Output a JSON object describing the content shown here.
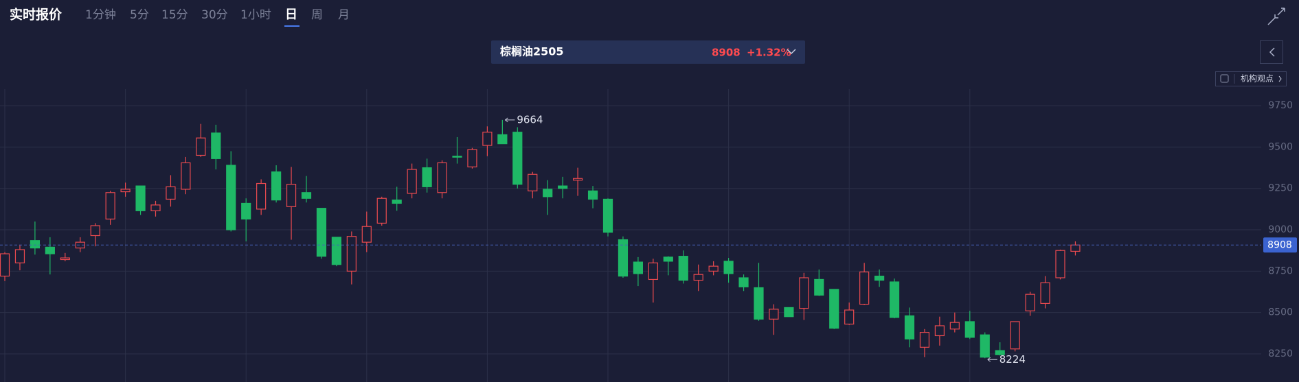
{
  "header": {
    "title": "实时报价",
    "tabs": [
      "1分钟",
      "5分",
      "15分",
      "30分",
      "1小时",
      "日",
      "周",
      "月"
    ],
    "active_tab": 5,
    "quote": {
      "symbol": "棕榈油2505",
      "price": 8908,
      "change": "+1.32%"
    },
    "button": "机构观点"
  },
  "chart_data": {
    "type": "candlestick",
    "open": [
      8720,
      8800,
      8935,
      8895,
      8820,
      8890,
      8965,
      9065,
      9230,
      9265,
      9115,
      9185,
      9245,
      9450,
      9585,
      9390,
      9160,
      9125,
      9350,
      9140,
      9225,
      9130,
      8955,
      8750,
      8925,
      9040,
      9180,
      9220,
      9375,
      9225,
      9445,
      9380,
      9510,
      9575,
      9590,
      9235,
      9245,
      9265,
      9300,
      9235,
      9185,
      8940,
      8805,
      8700,
      8835,
      8840,
      8695,
      8750,
      8810,
      8710,
      8650,
      8460,
      8530,
      8525,
      8700,
      8640,
      8430,
      8550,
      8720,
      8685,
      8480,
      8290,
      8360,
      8400,
      8445,
      8365,
      8270,
      8280,
      8510,
      8555,
      8710,
      8870
    ],
    "high": [
      8865,
      8910,
      9050,
      8955,
      8860,
      8955,
      9040,
      9235,
      9285,
      9265,
      9175,
      9330,
      9440,
      9640,
      9635,
      9475,
      9190,
      9305,
      9390,
      9380,
      9325,
      9130,
      8955,
      8990,
      9110,
      9200,
      9260,
      9400,
      9430,
      9420,
      9560,
      9495,
      9625,
      9664,
      9620,
      9350,
      9300,
      9320,
      9375,
      9265,
      9190,
      8960,
      8835,
      8825,
      8840,
      8875,
      8790,
      8810,
      8830,
      8730,
      8800,
      8550,
      8530,
      8740,
      8760,
      8640,
      8560,
      8800,
      8760,
      8705,
      8530,
      8400,
      8475,
      8500,
      8510,
      8380,
      8320,
      8445,
      8625,
      8720,
      8880,
      8930
    ],
    "low": [
      8690,
      8755,
      8850,
      8730,
      8810,
      8865,
      8900,
      9030,
      9200,
      9090,
      9080,
      9140,
      9215,
      9440,
      9365,
      8990,
      8930,
      9090,
      9165,
      8940,
      9165,
      8825,
      8780,
      8670,
      8865,
      9025,
      9115,
      9190,
      9225,
      9190,
      9400,
      9370,
      9445,
      9520,
      9250,
      9190,
      9090,
      9190,
      9205,
      9130,
      8960,
      8710,
      8660,
      8560,
      8725,
      8675,
      8630,
      8725,
      8680,
      8630,
      8450,
      8365,
      8475,
      8455,
      8600,
      8400,
      8425,
      8545,
      8655,
      8465,
      8290,
      8230,
      8300,
      8380,
      8340,
      8224,
      8240,
      8265,
      8480,
      8525,
      8700,
      8845
    ],
    "close": [
      8855,
      8880,
      8890,
      8855,
      8830,
      8925,
      9025,
      9225,
      9245,
      9115,
      9150,
      9260,
      9405,
      9555,
      9430,
      9000,
      9065,
      9280,
      9180,
      9275,
      9190,
      8840,
      8790,
      8960,
      9020,
      9190,
      9160,
      9365,
      9260,
      9405,
      9440,
      9485,
      9590,
      9520,
      9275,
      9335,
      9200,
      9250,
      9310,
      9185,
      8985,
      8720,
      8735,
      8800,
      8810,
      8695,
      8730,
      8780,
      8735,
      8655,
      8460,
      8520,
      8475,
      8710,
      8605,
      8405,
      8515,
      8745,
      8695,
      8470,
      8340,
      8380,
      8420,
      8440,
      8350,
      8230,
      8245,
      8445,
      8610,
      8680,
      8875,
      8908
    ],
    "up_color": "#ea4a4f",
    "down_color": "#1fb866",
    "ylim": [
      8080,
      9850
    ],
    "yticks": [
      8250,
      8500,
      8750,
      9000,
      9250,
      9500,
      9750
    ],
    "grid": true,
    "last_price": 8908,
    "annotations": [
      9664,
      8224
    ]
  }
}
